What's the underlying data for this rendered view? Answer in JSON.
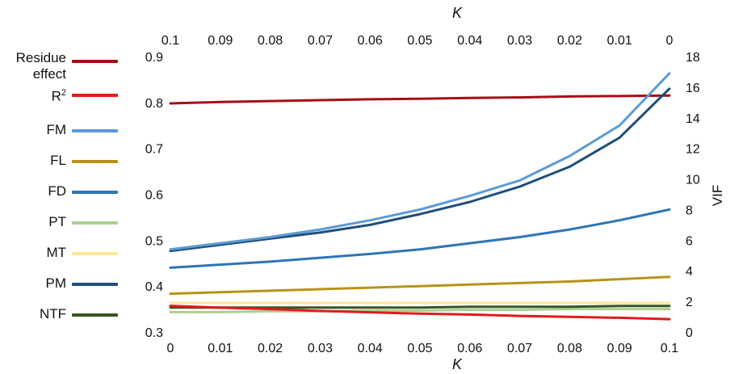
{
  "chart_data": {
    "type": "line",
    "x_bottom_label": "K",
    "x_top_label": "K",
    "y2_label": "VIF",
    "x": [
      0,
      0.01,
      0.02,
      0.03,
      0.04,
      0.05,
      0.06,
      0.07,
      0.08,
      0.09,
      0.1
    ],
    "x_bottom_ticks": [
      "0",
      "0.01",
      "0.02",
      "0.03",
      "0.04",
      "0.05",
      "0.06",
      "0.07",
      "0.08",
      "0.09",
      "0.1"
    ],
    "x_top_ticks": [
      "0.1",
      "0.09",
      "0.08",
      "0.07",
      "0.06",
      "0.05",
      "0.04",
      "0.03",
      "0.02",
      "0.01",
      "0"
    ],
    "y_left_lim": [
      0.3,
      0.9
    ],
    "y_left_ticks": [
      "0.3",
      "0.4",
      "0.5",
      "0.6",
      "0.7",
      "0.8",
      "0.9"
    ],
    "y_right_lim": [
      0,
      18
    ],
    "y_right_ticks": [
      "0",
      "2",
      "4",
      "6",
      "8",
      "10",
      "12",
      "14",
      "16",
      "18"
    ],
    "grid": false,
    "legend_position": "left",
    "series": [
      {
        "name": "Residue effect",
        "name_lines": [
          "Residue",
          "effect"
        ],
        "color": "#a50f15",
        "axis": "left",
        "x": [
          0,
          0.01,
          0.02,
          0.03,
          0.04,
          0.05,
          0.06,
          0.07,
          0.08,
          0.09,
          0.1
        ],
        "values": [
          0.798,
          0.801,
          0.803,
          0.805,
          0.807,
          0.808,
          0.81,
          0.811,
          0.813,
          0.814,
          0.815
        ]
      },
      {
        "name": "R²",
        "name_base": "R",
        "name_sup": "2",
        "color": "#e31a1c",
        "axis": "left",
        "x": [
          0,
          0.01,
          0.02,
          0.03,
          0.04,
          0.05,
          0.06,
          0.07,
          0.08,
          0.09,
          0.1
        ],
        "values": [
          0.357,
          0.353,
          0.35,
          0.346,
          0.343,
          0.34,
          0.338,
          0.335,
          0.333,
          0.331,
          0.328
        ]
      },
      {
        "name": "FM",
        "color": "#5b9bd5",
        "axis": "right",
        "x": [
          0,
          0.01,
          0.02,
          0.03,
          0.04,
          0.05,
          0.06,
          0.07,
          0.08,
          0.09,
          0.1
        ],
        "values": [
          5.4,
          5.8,
          6.2,
          6.7,
          7.3,
          8.0,
          8.9,
          9.9,
          11.5,
          13.5,
          16.9
        ]
      },
      {
        "name": "FL",
        "color": "#b8921a",
        "axis": "right",
        "x": [
          0,
          0.01,
          0.02,
          0.03,
          0.04,
          0.05,
          0.06,
          0.07,
          0.08,
          0.09,
          0.1
        ],
        "values": [
          2.5,
          2.6,
          2.7,
          2.8,
          2.9,
          3.0,
          3.1,
          3.2,
          3.3,
          3.45,
          3.6
        ]
      },
      {
        "name": "FD",
        "color": "#2e75b6",
        "axis": "right",
        "x": [
          0,
          0.01,
          0.02,
          0.03,
          0.04,
          0.05,
          0.06,
          0.07,
          0.08,
          0.09,
          0.1
        ],
        "values": [
          4.2,
          4.4,
          4.6,
          4.85,
          5.1,
          5.4,
          5.8,
          6.2,
          6.7,
          7.3,
          8.0
        ]
      },
      {
        "name": "PT",
        "color": "#a9d18e",
        "axis": "right",
        "x": [
          0,
          0.01,
          0.02,
          0.03,
          0.04,
          0.05,
          0.06,
          0.07,
          0.08,
          0.09,
          0.1
        ],
        "values": [
          1.3,
          1.3,
          1.35,
          1.35,
          1.4,
          1.4,
          1.45,
          1.45,
          1.5,
          1.5,
          1.5
        ]
      },
      {
        "name": "MT",
        "color": "#ffe699",
        "axis": "right",
        "x": [
          0,
          0.01,
          0.02,
          0.03,
          0.04,
          0.05,
          0.06,
          0.07,
          0.08,
          0.09,
          0.1
        ],
        "values": [
          1.9,
          1.9,
          1.9,
          1.9,
          1.9,
          1.9,
          1.9,
          1.9,
          1.9,
          1.9,
          1.9
        ]
      },
      {
        "name": "PM",
        "color": "#1f4e79",
        "axis": "right",
        "x": [
          0,
          0.01,
          0.02,
          0.03,
          0.04,
          0.05,
          0.06,
          0.07,
          0.08,
          0.09,
          0.1
        ],
        "values": [
          5.3,
          5.7,
          6.1,
          6.5,
          7.0,
          7.7,
          8.5,
          9.5,
          10.8,
          12.7,
          15.9
        ]
      },
      {
        "name": "NTF",
        "color": "#375623",
        "axis": "right",
        "x": [
          0,
          0.01,
          0.02,
          0.03,
          0.04,
          0.05,
          0.06,
          0.07,
          0.08,
          0.09,
          0.1
        ],
        "values": [
          1.6,
          1.6,
          1.6,
          1.6,
          1.6,
          1.6,
          1.65,
          1.65,
          1.65,
          1.7,
          1.7
        ]
      }
    ]
  }
}
